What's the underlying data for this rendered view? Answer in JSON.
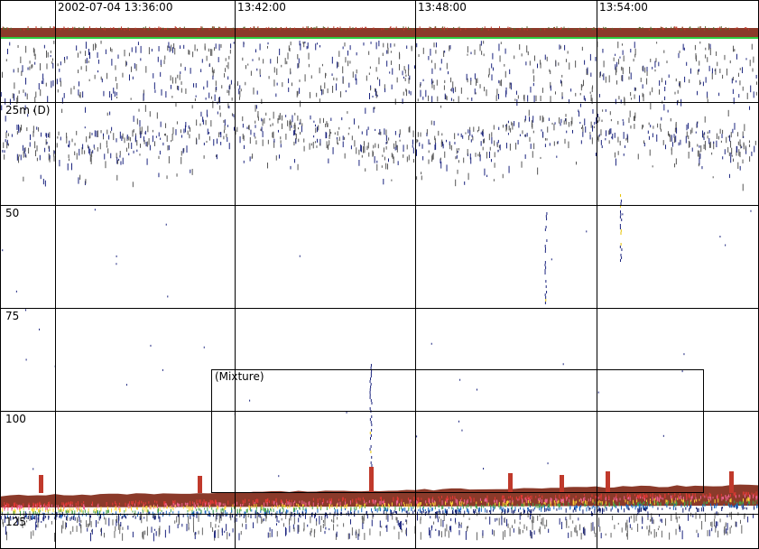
{
  "time_labels": [
    "2002-07-04 13:36:00",
    "13:42:00",
    "13:48:00",
    "13:54:00"
  ],
  "depth_labels": [
    "25m (D)",
    "50",
    "75",
    "100",
    "125"
  ],
  "region": {
    "label": "(Mixture)"
  }
}
